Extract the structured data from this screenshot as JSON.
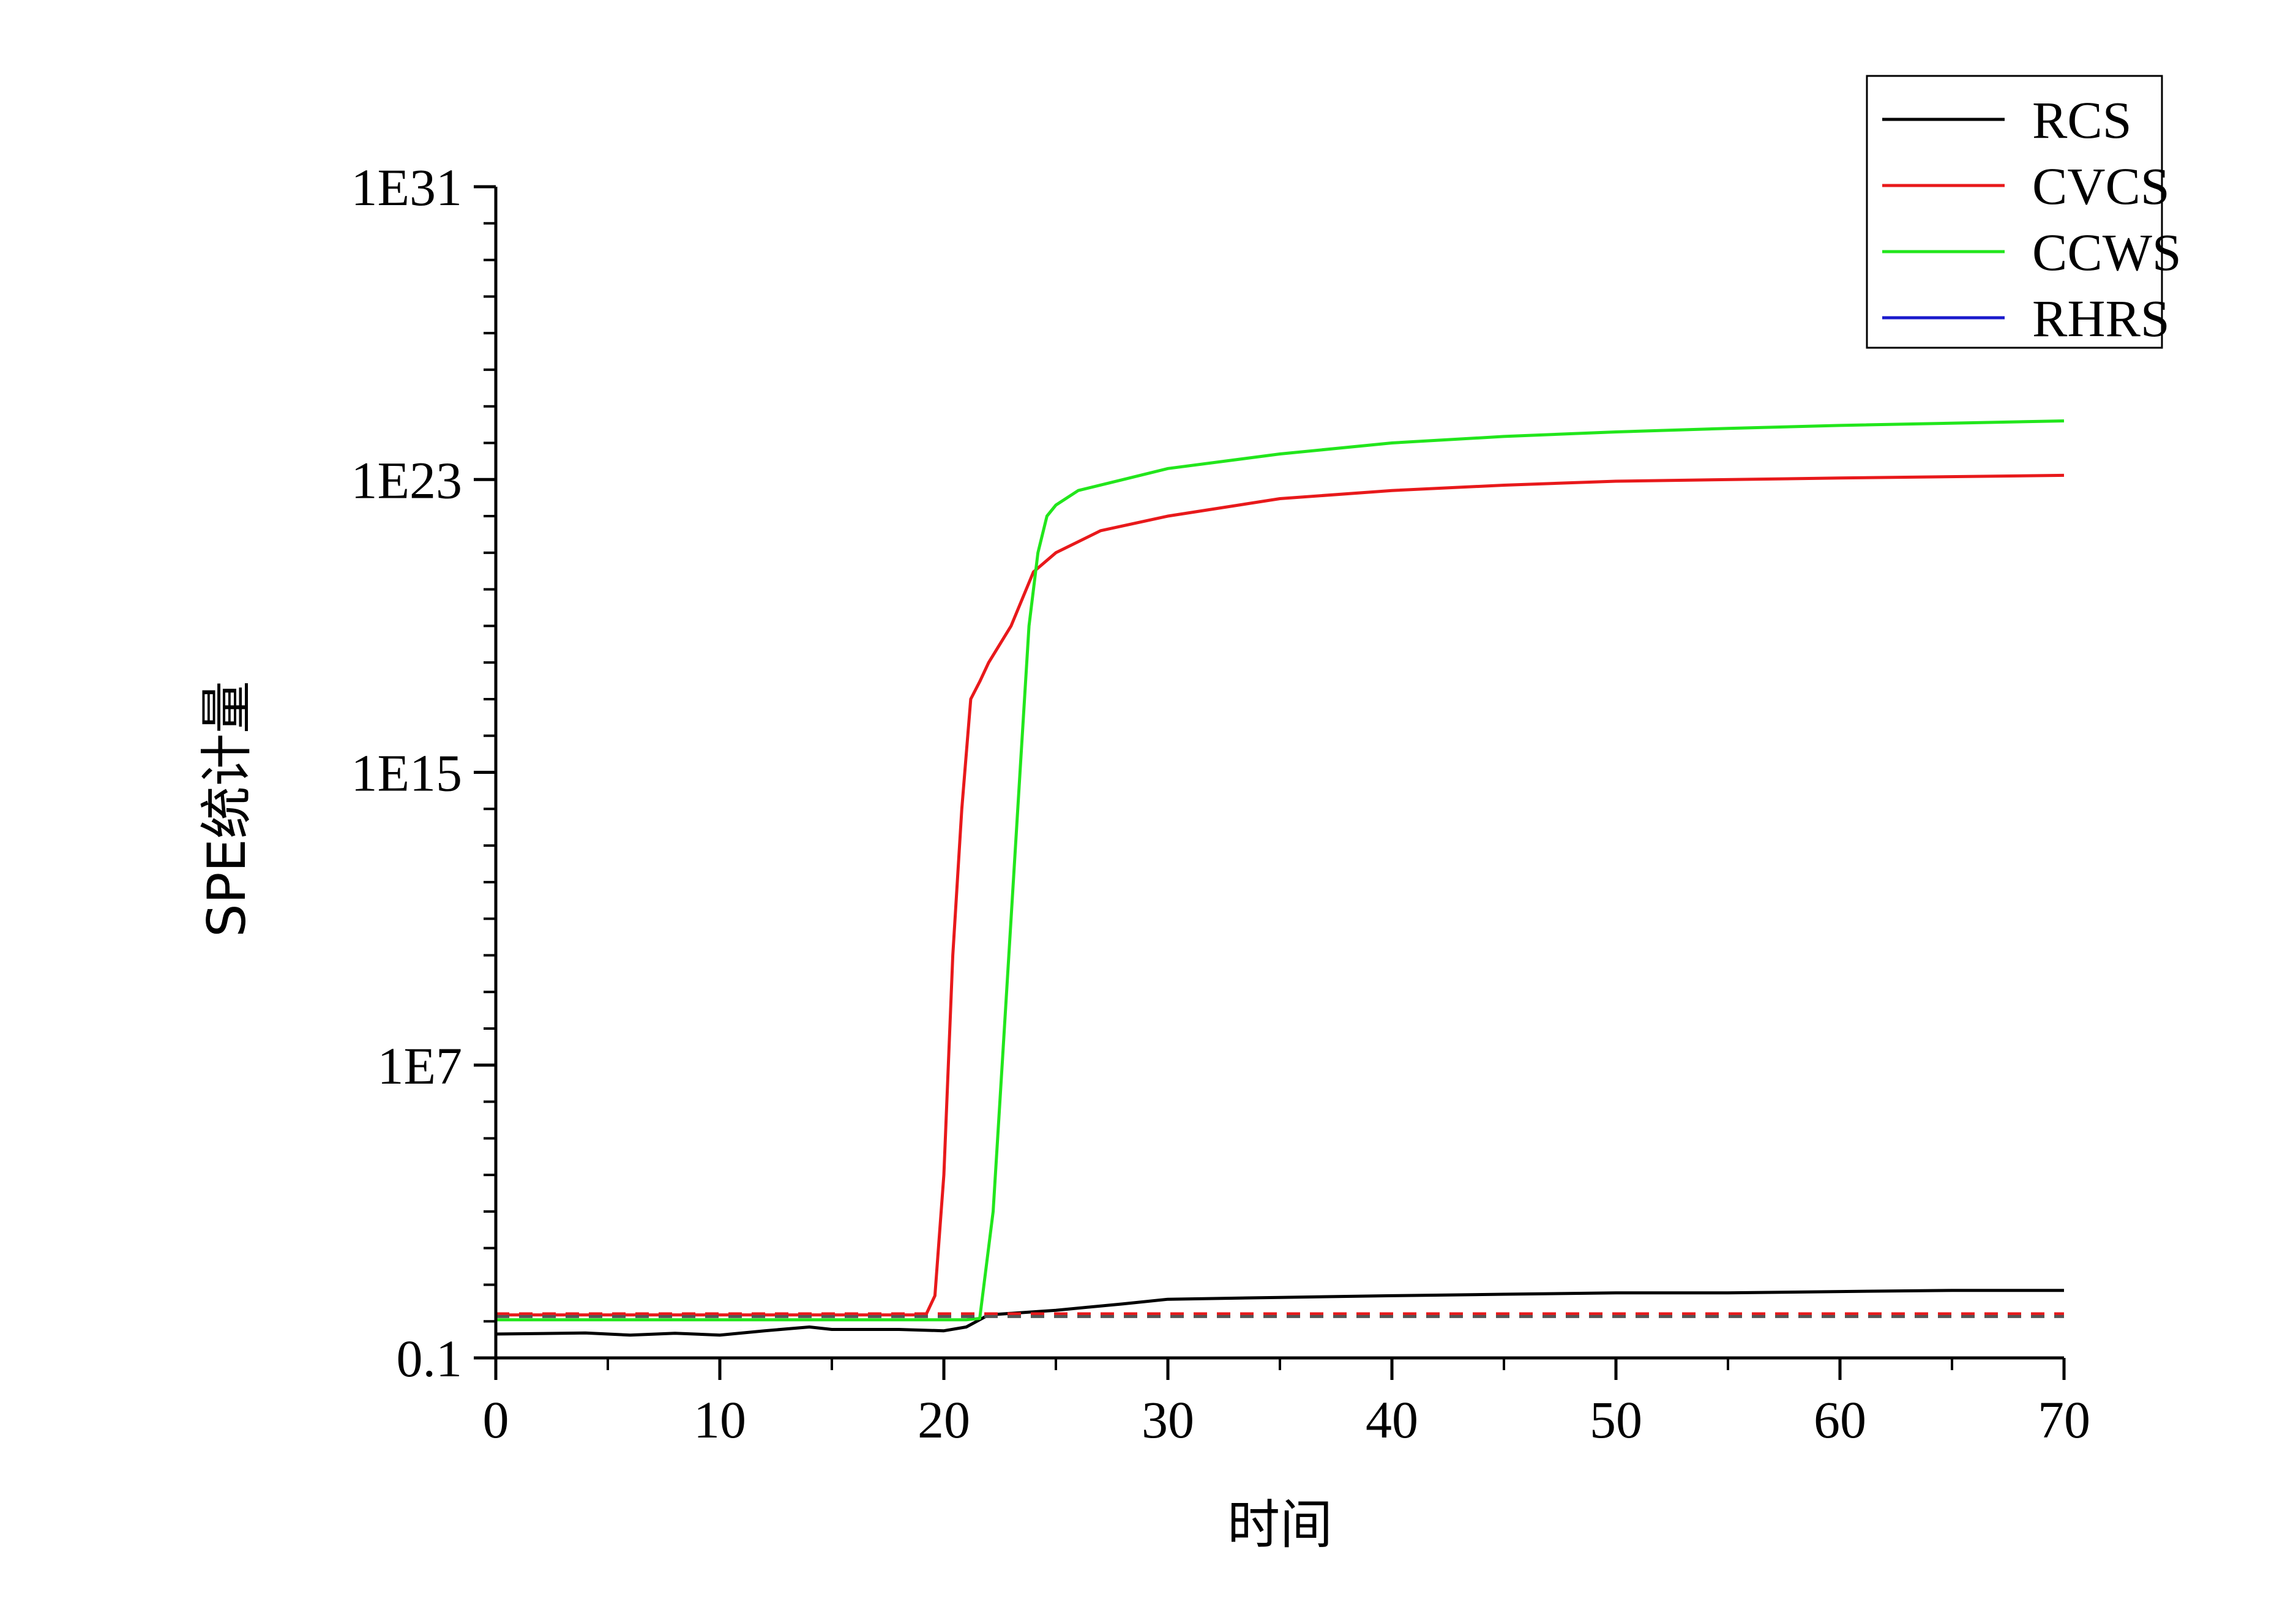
{
  "chart_data": {
    "type": "line",
    "xlabel": "时间",
    "ylabel": "SPE统计量",
    "xlim": [
      0,
      70
    ],
    "ylim": [
      0.1,
      1e+31
    ],
    "yscale": "log",
    "xticks": [
      "0",
      "10",
      "20",
      "30",
      "40",
      "50",
      "60",
      "70"
    ],
    "yticks": [
      "0.1",
      "1E7",
      "1E15",
      "1E23",
      "1E31"
    ],
    "legend_position": "top-right",
    "series": [
      {
        "name": "RCS",
        "color": "#000000",
        "x": [
          0,
          4,
          6,
          8,
          10,
          12,
          14,
          15,
          18,
          20,
          21,
          22,
          25,
          28,
          30,
          35,
          40,
          45,
          50,
          55,
          60,
          65,
          70
        ],
        "y": [
          0.45,
          0.48,
          0.42,
          0.47,
          0.42,
          0.55,
          0.7,
          0.6,
          0.6,
          0.55,
          0.7,
          1.5,
          2,
          3,
          4,
          4.5,
          5,
          5.5,
          6,
          6,
          6.5,
          7,
          7
        ]
      },
      {
        "name": "CVCS",
        "color": "#e8191b",
        "x": [
          0,
          10,
          19.2,
          19.6,
          20,
          20.4,
          20.8,
          21.2,
          21.6,
          22,
          23,
          24,
          25,
          27,
          30,
          35,
          40,
          45,
          50,
          60,
          70
        ],
        "y": [
          1.5,
          1.5,
          1.5,
          5,
          10000.0,
          10000000000.0,
          100000000000000.0,
          1e+17,
          3e+17,
          1e+18,
          1e+19,
          3e+20,
          1e+21,
          4e+21,
          1e+22,
          3e+22,
          5e+22,
          7e+22,
          9e+22,
          1.1e+23,
          1.3e+23
        ]
      },
      {
        "name": "CCWS",
        "color": "#22e61c",
        "x": [
          0,
          10,
          21,
          21.6,
          22.2,
          22.6,
          23,
          23.4,
          23.8,
          24.2,
          24.6,
          25,
          26,
          28,
          30,
          35,
          40,
          45,
          50,
          55,
          60,
          70
        ],
        "y": [
          1.1,
          1.1,
          1.1,
          1.2,
          1000.0,
          10000000.0,
          100000000000.0,
          1000000000000000.0,
          1e+19,
          1e+21,
          1e+22,
          2e+22,
          5e+22,
          1e+23,
          2e+23,
          5e+23,
          1e+24,
          1.5e+24,
          2e+24,
          2.5e+24,
          3e+24,
          4e+24
        ]
      },
      {
        "name": "RHRS",
        "color": "#1a1acc",
        "x": [],
        "y": []
      }
    ],
    "thresholds": [
      {
        "value": 1.6,
        "color": "#e8191b",
        "style": "dashed"
      },
      {
        "value": 1.35,
        "color": "#555555",
        "style": "dashed"
      }
    ]
  }
}
